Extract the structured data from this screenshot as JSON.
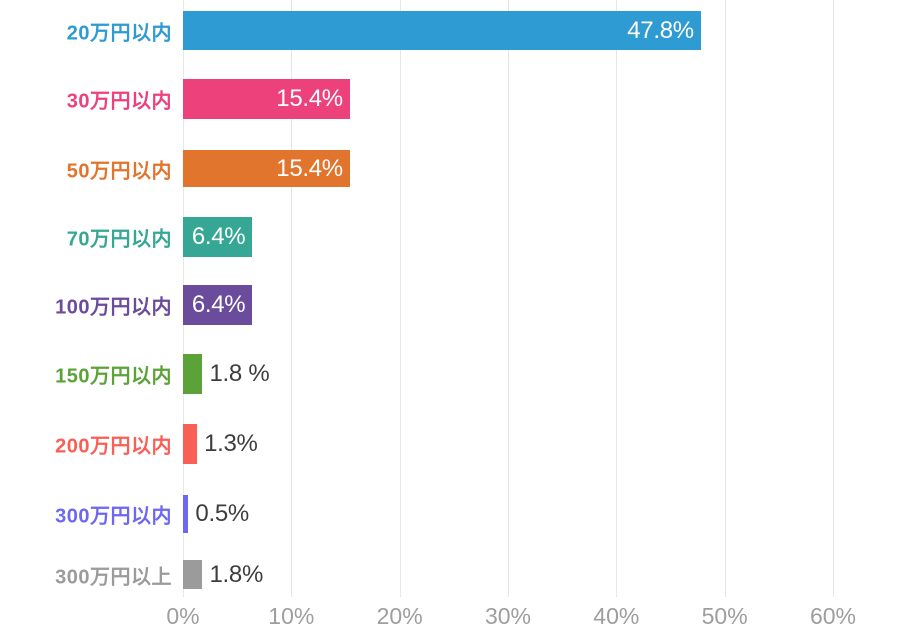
{
  "chart_data": {
    "type": "bar",
    "orientation": "horizontal",
    "title": "",
    "xlabel": "",
    "ylabel": "",
    "xlim": [
      0,
      60
    ],
    "grid": true,
    "legend_position": "none",
    "x_ticks": [
      {
        "label": "0%",
        "value": 0
      },
      {
        "label": "10%",
        "value": 10
      },
      {
        "label": "20%",
        "value": 20
      },
      {
        "label": "30%",
        "value": 30
      },
      {
        "label": "40%",
        "value": 40
      },
      {
        "label": "50%",
        "value": 50
      },
      {
        "label": "60%",
        "value": 60
      }
    ],
    "categories": [
      "20万円以内",
      "30万円以内",
      "50万円以内",
      "70万円以内",
      "100万円以内",
      "150万円以内",
      "200万円以内",
      "300万円以内",
      "300万円以上"
    ],
    "values": [
      47.8,
      15.4,
      15.4,
      6.4,
      6.4,
      1.8,
      1.3,
      0.5,
      1.8
    ],
    "series": [
      {
        "category": "20万円以内",
        "value": 47.8,
        "value_label": "47.8%",
        "color": "#2E9BD2",
        "value_label_placement": "inside"
      },
      {
        "category": "30万円以内",
        "value": 15.4,
        "value_label": "15.4%",
        "color": "#ED417B",
        "value_label_placement": "inside"
      },
      {
        "category": "50万円以内",
        "value": 15.4,
        "value_label": "15.4%",
        "color": "#E2752D",
        "value_label_placement": "inside"
      },
      {
        "category": "70万円以内",
        "value": 6.4,
        "value_label": "6.4%",
        "color": "#36A795",
        "value_label_placement": "inside"
      },
      {
        "category": "100万円以内",
        "value": 6.4,
        "value_label": "6.4%",
        "color": "#6A4B9C",
        "value_label_placement": "inside"
      },
      {
        "category": "150万円以内",
        "value": 1.8,
        "value_label": "1.8 %",
        "color": "#5BA338",
        "value_label_placement": "outside"
      },
      {
        "category": "200万円以内",
        "value": 1.3,
        "value_label": "1.3%",
        "color": "#F96055",
        "value_label_placement": "outside"
      },
      {
        "category": "300万円以内",
        "value": 0.5,
        "value_label": "0.5%",
        "color": "#6E67F1",
        "value_label_placement": "outside"
      },
      {
        "category": "300万円以上",
        "value": 1.8,
        "value_label": "1.8%",
        "color": "#9B9B9B",
        "value_label_placement": "outside"
      }
    ]
  },
  "colors": {
    "background": "#FFFFFF",
    "gridline": "#E7E7E7",
    "axis_tick_text": "#9E9E9E",
    "value_text_inside": "#FFFFFF",
    "value_text_outside": "#3D3D3D"
  }
}
